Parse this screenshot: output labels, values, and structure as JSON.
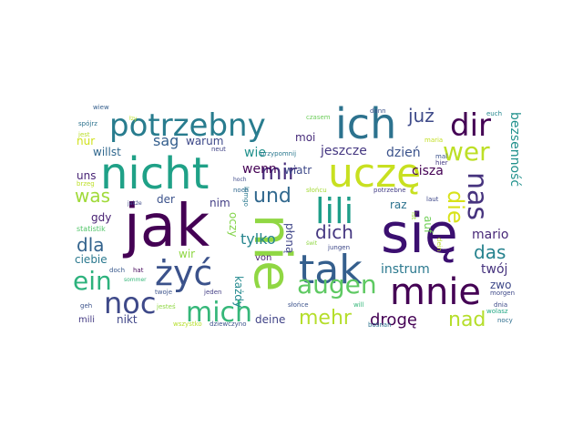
{
  "words": [
    {
      "text": "jak",
      "color": "#440154",
      "vertical": false
    },
    {
      "text": "się",
      "color": "#3b0f70",
      "vertical": false
    },
    {
      "text": "nie",
      "color": "#90d743",
      "vertical": true
    },
    {
      "text": "nicht",
      "color": "#1fa187",
      "vertical": false
    },
    {
      "text": "ich",
      "color": "#2c728e",
      "vertical": false
    },
    {
      "text": "uczę",
      "color": "#c8e020",
      "vertical": false
    },
    {
      "text": "tak",
      "color": "#355f8d",
      "vertical": false
    },
    {
      "text": "potrzebny",
      "color": "#287c8e",
      "vertical": false
    },
    {
      "text": "lili",
      "color": "#1f9e89",
      "vertical": false
    },
    {
      "text": "mnie",
      "color": "#440154",
      "vertical": false
    },
    {
      "text": "żyć",
      "color": "#3b528b",
      "vertical": false
    },
    {
      "text": "noc",
      "color": "#3e4989",
      "vertical": false
    },
    {
      "text": "dir",
      "color": "#440154",
      "vertical": false
    },
    {
      "text": "ein",
      "color": "#2db27d",
      "vertical": false
    },
    {
      "text": "mich",
      "color": "#35b779",
      "vertical": false
    },
    {
      "text": "augen",
      "color": "#5ec962",
      "vertical": false
    },
    {
      "text": "wer",
      "color": "#bddf26",
      "vertical": false
    },
    {
      "text": "nas",
      "color": "#46337e",
      "vertical": true
    },
    {
      "text": "mir",
      "color": "#472d7b",
      "vertical": false
    },
    {
      "text": "und",
      "color": "#31688e",
      "vertical": false
    },
    {
      "text": "mehr",
      "color": "#b5de2b",
      "vertical": false
    },
    {
      "text": "nad",
      "color": "#b5de2b",
      "vertical": false
    },
    {
      "text": "die",
      "color": "#d8e219",
      "vertical": true
    },
    {
      "text": "dich",
      "color": "#453781",
      "vertical": false
    },
    {
      "text": "das",
      "color": "#26828e",
      "vertical": false
    },
    {
      "text": "was",
      "color": "#a0da39",
      "vertical": false
    },
    {
      "text": "dla",
      "color": "#33638d",
      "vertical": false
    },
    {
      "text": "już",
      "color": "#3e4a89",
      "vertical": false
    },
    {
      "text": "drogę",
      "color": "#440154",
      "vertical": false
    },
    {
      "text": "sag",
      "color": "#355f8d",
      "vertical": false
    },
    {
      "text": "bezsenność",
      "color": "#21918c",
      "vertical": true
    },
    {
      "text": "instrum",
      "color": "#2a788e",
      "vertical": false
    },
    {
      "text": "tylko",
      "color": "#25858e",
      "vertical": false
    },
    {
      "text": "wenn",
      "color": "#440154",
      "vertical": false
    },
    {
      "text": "jeszcze",
      "color": "#453781",
      "vertical": false
    },
    {
      "text": "dzień",
      "color": "#3b528b",
      "vertical": false
    },
    {
      "text": "cisza",
      "color": "#440154",
      "vertical": false
    },
    {
      "text": "mario",
      "color": "#482878",
      "vertical": false
    },
    {
      "text": "twój",
      "color": "#46337e",
      "vertical": false
    },
    {
      "text": "wie",
      "color": "#21918c",
      "vertical": false
    },
    {
      "text": "warum",
      "color": "#3e4989",
      "vertical": false
    },
    {
      "text": "moi",
      "color": "#472c7a",
      "vertical": false
    },
    {
      "text": "wiatr",
      "color": "#3e4989",
      "vertical": false
    },
    {
      "text": "willst",
      "color": "#31688e",
      "vertical": false
    },
    {
      "text": "nur",
      "color": "#d0e11c",
      "vertical": false
    },
    {
      "text": "uns",
      "color": "#482475",
      "vertical": false
    },
    {
      "text": "gdy",
      "color": "#482173",
      "vertical": false
    },
    {
      "text": "ciebie",
      "color": "#2a788e",
      "vertical": false
    },
    {
      "text": "der",
      "color": "#3b528b",
      "vertical": false
    },
    {
      "text": "nim",
      "color": "#433e85",
      "vertical": false
    },
    {
      "text": "raz",
      "color": "#2c728e",
      "vertical": false
    },
    {
      "text": "auf",
      "color": "#70cf57",
      "vertical": true
    },
    {
      "text": "oczy",
      "color": "#84d44b",
      "vertical": true
    },
    {
      "text": "płoną",
      "color": "#404688",
      "vertical": true
    },
    {
      "text": "wir",
      "color": "#8fd744",
      "vertical": false
    },
    {
      "text": "każdy",
      "color": "#23898e",
      "vertical": true
    },
    {
      "text": "von",
      "color": "#482071",
      "vertical": false
    },
    {
      "text": "zwo",
      "color": "#3e4989",
      "vertical": false
    },
    {
      "text": "nikt",
      "color": "#404688",
      "vertical": false
    },
    {
      "text": "deine",
      "color": "#414487",
      "vertical": false
    },
    {
      "text": "mili",
      "color": "#443a83",
      "vertical": false
    },
    {
      "text": "statistik",
      "color": "#52c569",
      "vertical": false
    },
    {
      "text": "doch",
      "color": "#38588c",
      "vertical": false
    },
    {
      "text": "hat",
      "color": "#46085c",
      "vertical": false
    },
    {
      "text": "twoje",
      "color": "#3b528b",
      "vertical": false
    },
    {
      "text": "jeden",
      "color": "#433e85",
      "vertical": false
    },
    {
      "text": "słońce",
      "color": "#3b528b",
      "vertical": false
    },
    {
      "text": "noch",
      "color": "#31688e",
      "vertical": false
    },
    {
      "text": "neut",
      "color": "#414487",
      "vertical": false
    },
    {
      "text": "przypomnij",
      "color": "#2a788e",
      "vertical": false
    },
    {
      "text": "słońcu",
      "color": "#a5db36",
      "vertical": false
    },
    {
      "text": "potrzebne",
      "color": "#433e85",
      "vertical": false
    },
    {
      "text": "laut",
      "color": "#3f4889",
      "vertical": false
    },
    {
      "text": "morgen",
      "color": "#3e4989",
      "vertical": false
    },
    {
      "text": "dnia",
      "color": "#3e4a89",
      "vertical": false
    },
    {
      "text": "nocy",
      "color": "#2e6e8e",
      "vertical": false
    },
    {
      "text": "will",
      "color": "#35b779",
      "vertical": false
    },
    {
      "text": "spójrz",
      "color": "#2c728e",
      "vertical": false
    },
    {
      "text": "czasem",
      "color": "#6ccd5a",
      "vertical": false
    },
    {
      "text": "dann",
      "color": "#3b528b",
      "vertical": false
    },
    {
      "text": "euch",
      "color": "#24878e",
      "vertical": false
    },
    {
      "text": "maria",
      "color": "#c2df23",
      "vertical": false
    },
    {
      "text": "jest",
      "color": "#b8de29",
      "vertical": false
    },
    {
      "text": "brzeg",
      "color": "#bddf26",
      "vertical": false
    },
    {
      "text": "jungen",
      "color": "#3e4989",
      "vertical": false
    },
    {
      "text": "jesteś",
      "color": "#90d743",
      "vertical": false
    },
    {
      "text": "wszystko",
      "color": "#b5de2b",
      "vertical": false
    },
    {
      "text": "dziewczyno",
      "color": "#3b528b",
      "vertical": false
    },
    {
      "text": "bośnan",
      "color": "#2c728e",
      "vertical": false
    },
    {
      "text": "geh",
      "color": "#3b528b",
      "vertical": false
    },
    {
      "text": "wolasz",
      "color": "#22a785",
      "vertical": false
    },
    {
      "text": "wiew",
      "color": "#355f8d",
      "vertical": false
    },
    {
      "text": "mal",
      "color": "#3b528b",
      "vertical": false
    },
    {
      "text": "hier",
      "color": "#443983",
      "vertical": false
    },
    {
      "text": "ist",
      "color": "#a2da37",
      "vertical": true
    },
    {
      "text": "dein",
      "color": "#b8de29",
      "vertical": true
    },
    {
      "text": "lpmgo",
      "color": "#2a788e",
      "vertical": true
    },
    {
      "text": "sommer",
      "color": "#35b779",
      "vertical": false
    },
    {
      "text": "jakże",
      "color": "#3e4989",
      "vertical": false
    },
    {
      "text": "łzy",
      "color": "#bddf26",
      "vertical": false
    },
    {
      "text": "świt",
      "color": "#90d743",
      "vertical": false
    },
    {
      "text": "hoch",
      "color": "#3e4989",
      "vertical": false
    }
  ]
}
